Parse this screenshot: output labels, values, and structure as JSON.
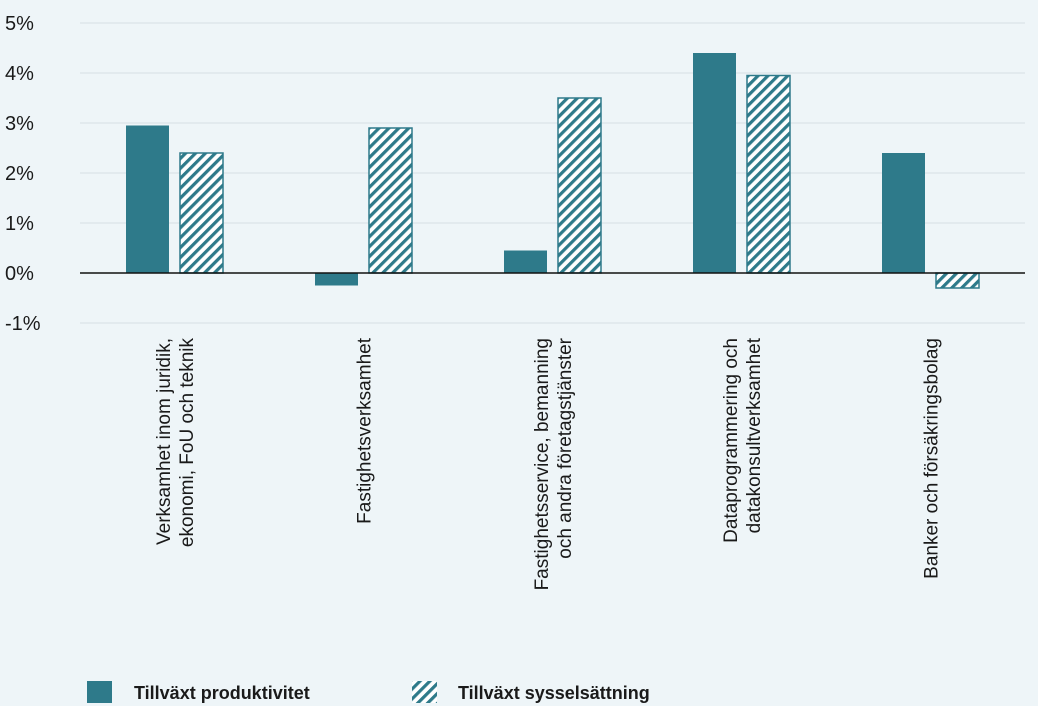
{
  "chart_data": {
    "type": "bar",
    "categories": [
      [
        "Verksamhet inom juridik,",
        "ekonomi, FoU och teknik"
      ],
      [
        "Fastighetsverksamhet"
      ],
      [
        "Fastighetsservice, bemanning",
        "och andra företagstjänster"
      ],
      [
        "Dataprogrammering och",
        "datakonsultverksamhet"
      ],
      [
        "Banker och försäkringsbolag"
      ]
    ],
    "series": [
      {
        "name": "Tillväxt produktivitet",
        "values": [
          2.95,
          -0.25,
          0.45,
          4.4,
          2.4
        ],
        "style": "solid"
      },
      {
        "name": "Tillväxt sysselsättning",
        "values": [
          2.4,
          2.9,
          3.5,
          3.95,
          -0.3
        ],
        "style": "hatched"
      }
    ],
    "y_ticks": [
      "5%",
      "4%",
      "3%",
      "2%",
      "1%",
      "0%",
      "-1%"
    ],
    "ylim": [
      -1,
      5
    ],
    "grid": true,
    "legend_position": "bottom-left",
    "colors": {
      "bar": "#2e7a8a",
      "background": "#eef5f8",
      "grid": "#d7e0e4",
      "axis": "#111111"
    }
  }
}
